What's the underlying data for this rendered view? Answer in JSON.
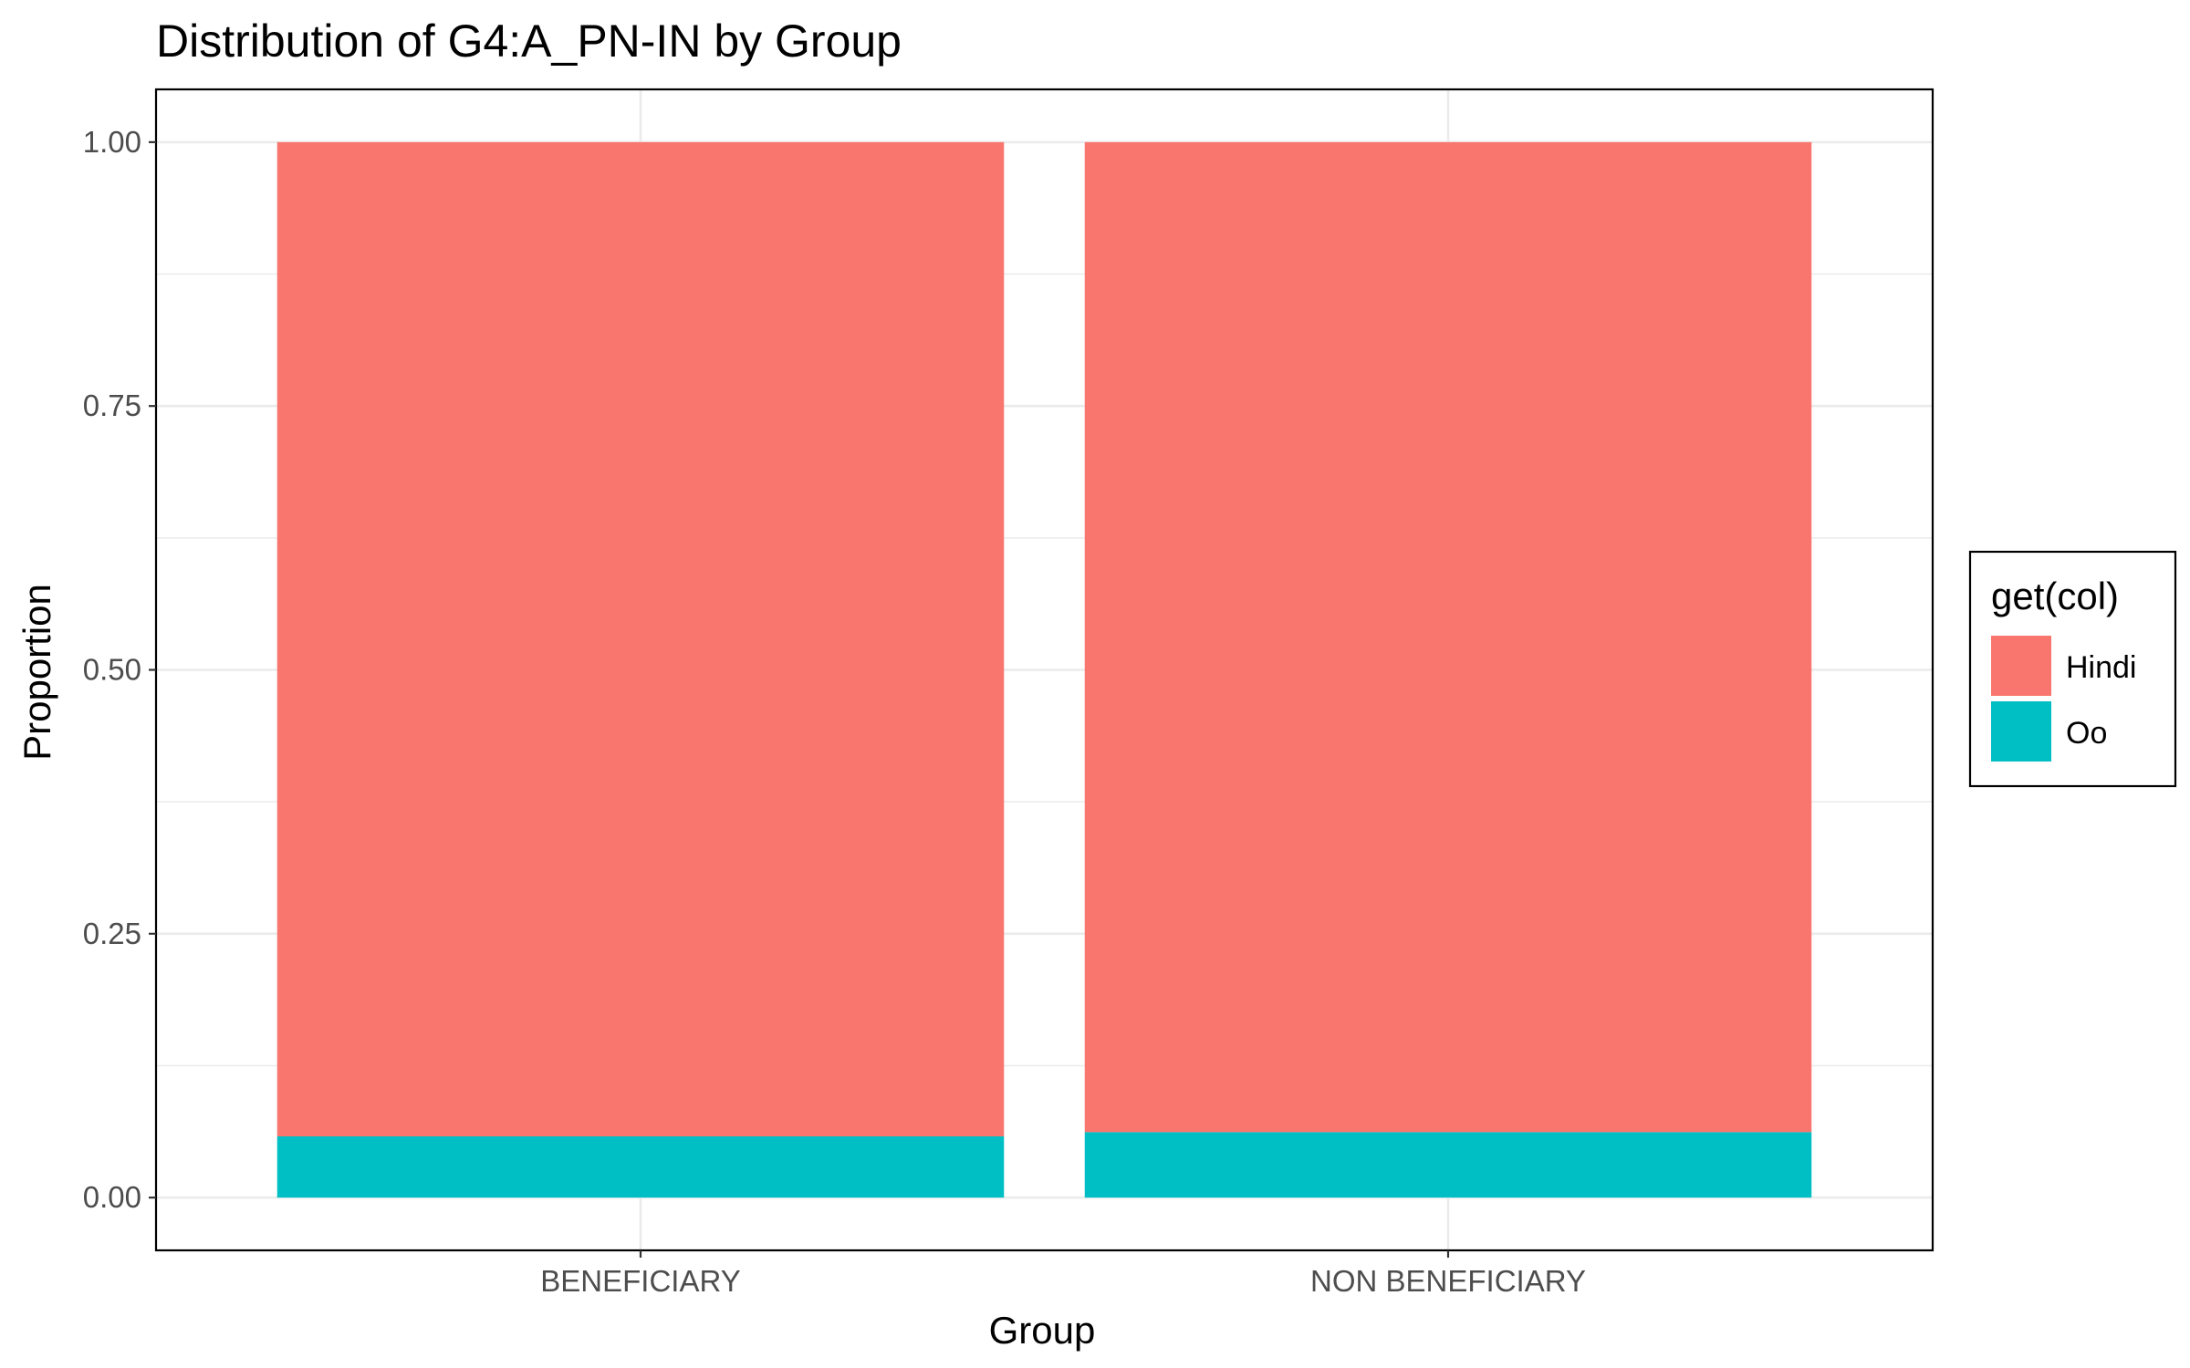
{
  "chart_data": {
    "type": "bar",
    "stacked": true,
    "title": "Distribution of G4:A_PN-IN by Group",
    "xlabel": "Group",
    "ylabel": "Proportion",
    "categories": [
      "BENEFICIARY",
      "NON BENEFICIARY"
    ],
    "series": [
      {
        "name": "Hindi",
        "color": "#F8766D",
        "values": [
          0.942,
          0.938
        ]
      },
      {
        "name": "Oo",
        "color": "#00BFC4",
        "values": [
          0.058,
          0.062
        ]
      }
    ],
    "ylim": [
      -0.05,
      1.05
    ],
    "yticks": [
      0.0,
      0.25,
      0.5,
      0.75,
      1.0
    ],
    "ytick_labels": [
      "0.00",
      "0.25",
      "0.50",
      "0.75",
      "1.00"
    ],
    "grid": true,
    "legend": {
      "title": "get(col)",
      "position": "right"
    }
  }
}
